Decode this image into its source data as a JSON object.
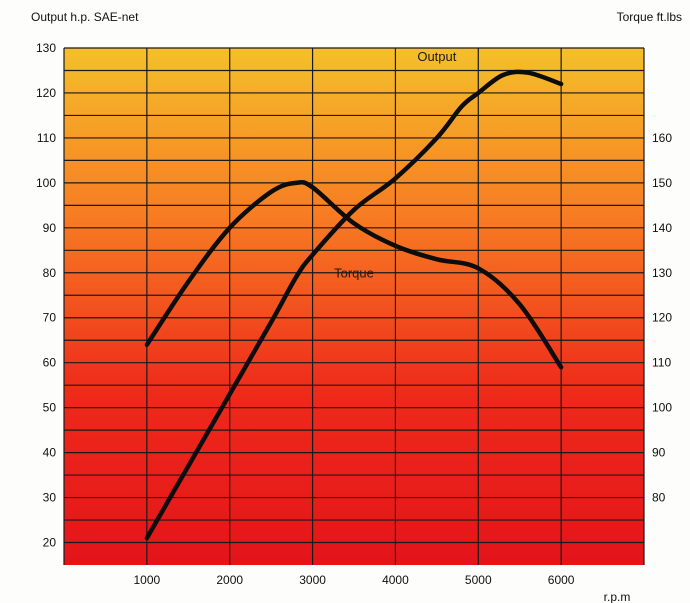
{
  "chart_data": {
    "type": "line",
    "left_axis_label": "Output h.p. SAE-net",
    "right_axis_label": "Torque ft.lbs",
    "xlabel": "r.p.m",
    "x_ticks": [
      "1000",
      "2000",
      "3000",
      "4000",
      "5000",
      "6000"
    ],
    "y_left_ticks": [
      "130",
      "120",
      "110",
      "100",
      "90",
      "80",
      "70",
      "60",
      "50",
      "40",
      "30",
      "20"
    ],
    "y_right_ticks": [
      "160",
      "150",
      "140",
      "130",
      "120",
      "110",
      "100",
      "90",
      "80"
    ],
    "xlim": [
      0,
      7000
    ],
    "ylim_left": [
      15,
      130
    ],
    "ylim_right": [
      65,
      180
    ],
    "grid": true,
    "background_gradient": [
      "#f4c02a",
      "#f77a22",
      "#ee2a1a",
      "#e4141a"
    ],
    "series": [
      {
        "name": "Output",
        "axis": "left",
        "x": [
          1000,
          1500,
          2000,
          2500,
          2800,
          3000,
          3500,
          4000,
          4500,
          4800,
          5000,
          5300,
          5600,
          6000
        ],
        "y": [
          21,
          37,
          53,
          69,
          79,
          84,
          94,
          101,
          110,
          117,
          120,
          124,
          124.5,
          122
        ]
      },
      {
        "name": "Torque",
        "axis": "right",
        "x": [
          1000,
          1500,
          2000,
          2500,
          2800,
          3000,
          3500,
          4000,
          4500,
          5000,
          5500,
          6000
        ],
        "y": [
          114,
          128,
          140,
          148,
          150,
          149,
          141,
          136,
          133,
          131,
          123,
          109
        ]
      }
    ]
  }
}
